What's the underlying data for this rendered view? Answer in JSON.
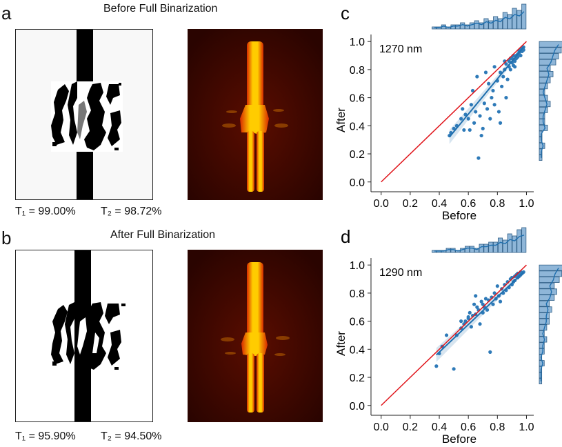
{
  "panels": {
    "a": {
      "letter": "a",
      "title": "Before Full Binarization",
      "t1": "T₁ = 99.00%",
      "t2": "T₂ = 98.72%"
    },
    "b": {
      "letter": "b",
      "title": "After Full Binarization",
      "t1": "T₁ = 95.90%",
      "t2": "T₂ = 94.50%"
    }
  },
  "colors": {
    "scatter": "#2e7ab8",
    "regression": "#1f6fae",
    "identity": "#e0141a",
    "hist_fill": "#8fb6d8",
    "hist_edge": "#2f5e86",
    "field_bg": "#2a0400",
    "field_glow": "#ffcc00"
  },
  "chart_data": [
    {
      "letter": "c",
      "type": "scatter",
      "title": "",
      "annotation": "1270 nm",
      "xlabel": "Before",
      "ylabel": "After",
      "xlim": [
        -0.07,
        1.05
      ],
      "ylim": [
        -0.07,
        1.05
      ],
      "xticks": [
        "0.0",
        "0.2",
        "0.4",
        "0.6",
        "0.8",
        "1.0"
      ],
      "yticks": [
        "0.0",
        "0.2",
        "0.4",
        "0.6",
        "0.8",
        "1.0"
      ],
      "identity_line": [
        [
          0,
          0
        ],
        [
          1,
          1
        ]
      ],
      "regression_line": [
        [
          0.47,
          0.32
        ],
        [
          0.98,
          0.96
        ]
      ],
      "points": [
        [
          0.47,
          0.33
        ],
        [
          0.48,
          0.35
        ],
        [
          0.5,
          0.38
        ],
        [
          0.52,
          0.4
        ],
        [
          0.55,
          0.45
        ],
        [
          0.56,
          0.52
        ],
        [
          0.57,
          0.37
        ],
        [
          0.58,
          0.48
        ],
        [
          0.6,
          0.45
        ],
        [
          0.61,
          0.37
        ],
        [
          0.62,
          0.55
        ],
        [
          0.63,
          0.65
        ],
        [
          0.64,
          0.42
        ],
        [
          0.65,
          0.5
        ],
        [
          0.66,
          0.75
        ],
        [
          0.67,
          0.17
        ],
        [
          0.68,
          0.47
        ],
        [
          0.69,
          0.33
        ],
        [
          0.7,
          0.38
        ],
        [
          0.71,
          0.56
        ],
        [
          0.72,
          0.78
        ],
        [
          0.73,
          0.52
        ],
        [
          0.74,
          0.7
        ],
        [
          0.75,
          0.45
        ],
        [
          0.76,
          0.6
        ],
        [
          0.77,
          0.65
        ],
        [
          0.78,
          0.82
        ],
        [
          0.78,
          0.55
        ],
        [
          0.8,
          0.72
        ],
        [
          0.81,
          0.5
        ],
        [
          0.82,
          0.42
        ],
        [
          0.82,
          0.78
        ],
        [
          0.83,
          0.68
        ],
        [
          0.84,
          0.75
        ],
        [
          0.85,
          0.8
        ],
        [
          0.86,
          0.6
        ],
        [
          0.86,
          0.84
        ],
        [
          0.87,
          0.73
        ],
        [
          0.88,
          0.82
        ],
        [
          0.88,
          0.86
        ],
        [
          0.89,
          0.8
        ],
        [
          0.9,
          0.85
        ],
        [
          0.9,
          0.88
        ],
        [
          0.91,
          0.83
        ],
        [
          0.91,
          0.9
        ],
        [
          0.92,
          0.87
        ],
        [
          0.92,
          0.86
        ],
        [
          0.93,
          0.9
        ],
        [
          0.93,
          0.88
        ],
        [
          0.94,
          0.91
        ],
        [
          0.94,
          0.89
        ],
        [
          0.95,
          0.93
        ],
        [
          0.95,
          0.92
        ],
        [
          0.96,
          0.94
        ],
        [
          0.96,
          0.9
        ],
        [
          0.97,
          0.95
        ],
        [
          0.97,
          0.93
        ],
        [
          0.98,
          0.96
        ],
        [
          0.98,
          0.94
        ],
        [
          0.92,
          0.82
        ],
        [
          0.89,
          0.88
        ],
        [
          0.85,
          0.86
        ]
      ],
      "hist_top": [
        1,
        1,
        2,
        1,
        2,
        2,
        3,
        2,
        3,
        4,
        3,
        5,
        4,
        6,
        5,
        8,
        7,
        10,
        9,
        12
      ],
      "hist_right": [
        1,
        1,
        2,
        1,
        1,
        3,
        2,
        2,
        3,
        4,
        3,
        2,
        3,
        4,
        5,
        4,
        6,
        7,
        8,
        10
      ]
    },
    {
      "letter": "d",
      "type": "scatter",
      "title": "",
      "annotation": "1290 nm",
      "xlabel": "Before",
      "ylabel": "After",
      "xlim": [
        -0.07,
        1.05
      ],
      "ylim": [
        -0.07,
        1.05
      ],
      "xticks": [
        "0.0",
        "0.2",
        "0.4",
        "0.6",
        "0.8",
        "1.0"
      ],
      "yticks": [
        "0.0",
        "0.2",
        "0.4",
        "0.6",
        "0.8",
        "1.0"
      ],
      "identity_line": [
        [
          0,
          0
        ],
        [
          1,
          1
        ]
      ],
      "regression_line": [
        [
          0.38,
          0.36
        ],
        [
          0.98,
          0.95
        ]
      ],
      "points": [
        [
          0.38,
          0.28
        ],
        [
          0.4,
          0.37
        ],
        [
          0.42,
          0.42
        ],
        [
          0.45,
          0.5
        ],
        [
          0.5,
          0.26
        ],
        [
          0.52,
          0.5
        ],
        [
          0.55,
          0.55
        ],
        [
          0.57,
          0.58
        ],
        [
          0.58,
          0.6
        ],
        [
          0.6,
          0.62
        ],
        [
          0.61,
          0.66
        ],
        [
          0.62,
          0.56
        ],
        [
          0.63,
          0.64
        ],
        [
          0.64,
          0.72
        ],
        [
          0.65,
          0.65
        ],
        [
          0.66,
          0.7
        ],
        [
          0.67,
          0.68
        ],
        [
          0.68,
          0.58
        ],
        [
          0.69,
          0.74
        ],
        [
          0.7,
          0.72
        ],
        [
          0.71,
          0.7
        ],
        [
          0.72,
          0.76
        ],
        [
          0.73,
          0.68
        ],
        [
          0.74,
          0.75
        ],
        [
          0.75,
          0.38
        ],
        [
          0.76,
          0.77
        ],
        [
          0.77,
          0.72
        ],
        [
          0.78,
          0.8
        ],
        [
          0.79,
          0.76
        ],
        [
          0.8,
          0.85
        ],
        [
          0.81,
          0.78
        ],
        [
          0.82,
          0.74
        ],
        [
          0.83,
          0.83
        ],
        [
          0.84,
          0.8
        ],
        [
          0.85,
          0.86
        ],
        [
          0.86,
          0.82
        ],
        [
          0.87,
          0.88
        ],
        [
          0.88,
          0.84
        ],
        [
          0.89,
          0.9
        ],
        [
          0.9,
          0.86
        ],
        [
          0.9,
          0.91
        ],
        [
          0.91,
          0.88
        ],
        [
          0.92,
          0.92
        ],
        [
          0.92,
          0.89
        ],
        [
          0.93,
          0.93
        ],
        [
          0.94,
          0.91
        ],
        [
          0.94,
          0.94
        ],
        [
          0.95,
          0.92
        ],
        [
          0.96,
          0.95
        ],
        [
          0.96,
          0.93
        ],
        [
          0.97,
          0.94
        ],
        [
          0.98,
          0.95
        ],
        [
          0.65,
          0.78
        ],
        [
          0.7,
          0.66
        ],
        [
          0.6,
          0.63
        ],
        [
          0.55,
          0.6
        ]
      ],
      "hist_top": [
        1,
        1,
        1,
        2,
        2,
        1,
        2,
        3,
        3,
        2,
        4,
        4,
        5,
        5,
        7,
        6,
        9,
        8,
        11,
        12
      ],
      "hist_right": [
        1,
        1,
        1,
        2,
        1,
        2,
        2,
        3,
        2,
        3,
        4,
        4,
        5,
        4,
        6,
        7,
        6,
        8,
        9,
        11
      ]
    }
  ]
}
